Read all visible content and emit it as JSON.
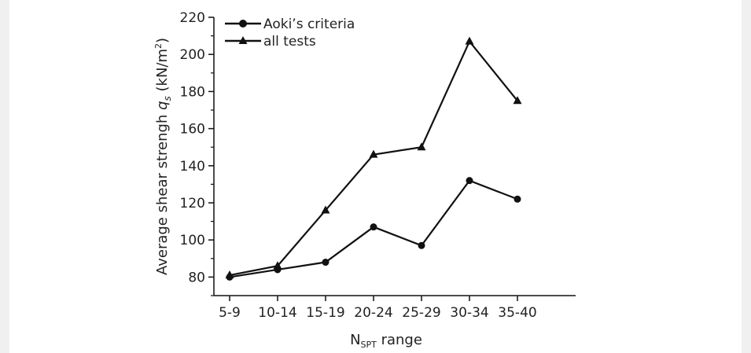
{
  "chart_data": {
    "type": "line",
    "categories": [
      "5-9",
      "10-14",
      "15-19",
      "20-24",
      "25-29",
      "30-34",
      "35-40"
    ],
    "series": [
      {
        "name": "Aoki’s criteria",
        "marker": "circle",
        "values": [
          80,
          84,
          88,
          107,
          97,
          132,
          122
        ]
      },
      {
        "name": "all tests",
        "marker": "triangle",
        "values": [
          81,
          86,
          116,
          146,
          150,
          207,
          175
        ]
      }
    ],
    "ylim": [
      70,
      220
    ],
    "yticks": [
      80,
      100,
      120,
      140,
      160,
      180,
      200,
      220
    ],
    "ylabel": {
      "prefix": "Average shear strengh ",
      "symbol": "q",
      "symbol_sub": "s",
      "units": " (kN/m",
      "units_sup": "2",
      "units_end": ")"
    },
    "xlabel": {
      "main": "N",
      "sub": "SPT",
      "rest": " range"
    },
    "legend_position": "top-left",
    "grid": false,
    "line_color": "#111111"
  }
}
